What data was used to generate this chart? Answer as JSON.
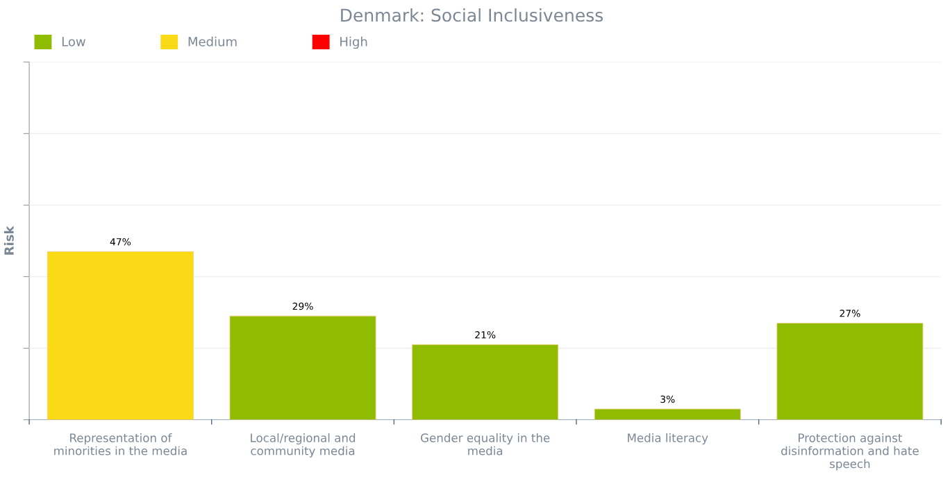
{
  "chart_data": {
    "type": "bar",
    "title": "Denmark: Social Inclusiveness",
    "ylabel": "Risk",
    "categories": [
      "Representation of\nminorities in the media",
      "Local/regional and\ncommunity media",
      "Gender equality in the\nmedia",
      "Media literacy",
      "Protection against\ndisinformation and hate\nspeech"
    ],
    "series": [
      {
        "name": "Low",
        "color": "#8fbc00",
        "values": [
          null,
          29,
          21,
          3,
          27
        ],
        "value_labels": [
          null,
          "29%",
          "21%",
          "3%",
          "27%"
        ]
      },
      {
        "name": "Medium",
        "color": "#fada16",
        "values": [
          47,
          null,
          null,
          null,
          null
        ],
        "value_labels": [
          "47%",
          null,
          null,
          null,
          null
        ]
      },
      {
        "name": "High",
        "color": "#ff0000",
        "values": [
          null,
          null,
          null,
          null,
          null
        ],
        "value_labels": [
          null,
          null,
          null,
          null,
          null
        ]
      }
    ],
    "ylim": [
      0,
      100
    ],
    "yticks": [
      {
        "value": 0,
        "label": null
      },
      {
        "value": 20,
        "label": null
      },
      {
        "value": 40,
        "label": null
      },
      {
        "value": 60,
        "label": null
      },
      {
        "value": 80,
        "label": null
      },
      {
        "value": 100,
        "label": null
      }
    ],
    "grid": "y",
    "legend": "top left"
  }
}
